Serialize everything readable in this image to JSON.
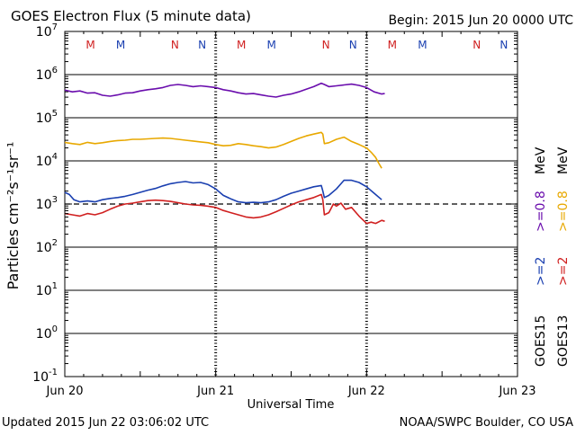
{
  "header": {
    "title": "GOES Electron Flux (5 minute data)",
    "begin": "Begin: 2015 Jun 20 0000 UTC"
  },
  "footer": {
    "updated": "Updated 2015 Jun 22 03:06:02 UTC",
    "credit": "NOAA/SWPC Boulder, CO USA"
  },
  "colors": {
    "goes15_ge08": "#6a0dad",
    "goes13_ge08": "#e8a800",
    "goes15_ge2": "#1a3fb0",
    "goes13_ge2": "#d02020",
    "m_marker": "#d02020",
    "n_marker": "#1a3fb0"
  },
  "chart_data": {
    "type": "line",
    "title": "GOES Electron Flux (5 minute data)",
    "xlabel": "Universal Time",
    "ylabel": "Particles cm⁻²s⁻¹sr⁻¹",
    "y_scale": "log",
    "x_range_days": [
      0,
      3
    ],
    "y_exponent_range": [
      -1,
      7
    ],
    "grid": true,
    "threshold_exponent": 3,
    "x_ticks": [
      {
        "day": 0,
        "label": "Jun 20"
      },
      {
        "day": 1,
        "label": "Jun 21"
      },
      {
        "day": 2,
        "label": "Jun 22"
      },
      {
        "day": 3,
        "label": "Jun 23"
      }
    ],
    "y_ticks": [
      {
        "exp": 7,
        "base": "10",
        "sup": "7"
      },
      {
        "exp": 6,
        "base": "10",
        "sup": "6"
      },
      {
        "exp": 5,
        "base": "10",
        "sup": "5"
      },
      {
        "exp": 4,
        "base": "10",
        "sup": "4"
      },
      {
        "exp": 3,
        "base": "10",
        "sup": "3"
      },
      {
        "exp": 2,
        "base": "10",
        "sup": "2"
      },
      {
        "exp": 1,
        "base": "10",
        "sup": "1"
      },
      {
        "exp": 0,
        "base": "10",
        "sup": "0"
      },
      {
        "exp": -1,
        "base": "10",
        "sup": "-1"
      }
    ],
    "markers": [
      {
        "day": 0.17,
        "label": "M",
        "color": "m_marker"
      },
      {
        "day": 0.37,
        "label": "M",
        "color": "n_marker"
      },
      {
        "day": 0.73,
        "label": "N",
        "color": "m_marker"
      },
      {
        "day": 0.91,
        "label": "N",
        "color": "n_marker"
      },
      {
        "day": 1.17,
        "label": "M",
        "color": "m_marker"
      },
      {
        "day": 1.37,
        "label": "M",
        "color": "n_marker"
      },
      {
        "day": 1.73,
        "label": "N",
        "color": "m_marker"
      },
      {
        "day": 1.91,
        "label": "N",
        "color": "n_marker"
      },
      {
        "day": 2.17,
        "label": "M",
        "color": "m_marker"
      },
      {
        "day": 2.37,
        "label": "M",
        "color": "n_marker"
      },
      {
        "day": 2.73,
        "label": "N",
        "color": "m_marker"
      },
      {
        "day": 2.91,
        "label": "N",
        "color": "n_marker"
      }
    ],
    "series": [
      {
        "name": "GOES15 >=0.8 MeV",
        "color": "goes15_ge08",
        "points": [
          [
            0,
            5.64
          ],
          [
            0.05,
            5.6
          ],
          [
            0.1,
            5.62
          ],
          [
            0.15,
            5.57
          ],
          [
            0.2,
            5.58
          ],
          [
            0.25,
            5.52
          ],
          [
            0.3,
            5.5
          ],
          [
            0.35,
            5.53
          ],
          [
            0.4,
            5.57
          ],
          [
            0.45,
            5.58
          ],
          [
            0.5,
            5.62
          ],
          [
            0.55,
            5.65
          ],
          [
            0.6,
            5.67
          ],
          [
            0.65,
            5.7
          ],
          [
            0.7,
            5.75
          ],
          [
            0.75,
            5.77
          ],
          [
            0.8,
            5.75
          ],
          [
            0.85,
            5.72
          ],
          [
            0.9,
            5.74
          ],
          [
            0.95,
            5.72
          ],
          [
            1.0,
            5.7
          ],
          [
            1.05,
            5.65
          ],
          [
            1.1,
            5.62
          ],
          [
            1.15,
            5.58
          ],
          [
            1.2,
            5.55
          ],
          [
            1.25,
            5.56
          ],
          [
            1.3,
            5.53
          ],
          [
            1.35,
            5.5
          ],
          [
            1.4,
            5.48
          ],
          [
            1.45,
            5.52
          ],
          [
            1.5,
            5.55
          ],
          [
            1.55,
            5.6
          ],
          [
            1.6,
            5.66
          ],
          [
            1.65,
            5.72
          ],
          [
            1.7,
            5.8
          ],
          [
            1.72,
            5.77
          ],
          [
            1.75,
            5.72
          ],
          [
            1.8,
            5.74
          ],
          [
            1.85,
            5.76
          ],
          [
            1.9,
            5.78
          ],
          [
            1.95,
            5.75
          ],
          [
            2.0,
            5.7
          ],
          [
            2.05,
            5.6
          ],
          [
            2.1,
            5.55
          ],
          [
            2.12,
            5.56
          ]
        ]
      },
      {
        "name": "GOES13 >=0.8 MeV",
        "color": "goes13_ge08",
        "points": [
          [
            0,
            4.43
          ],
          [
            0.05,
            4.4
          ],
          [
            0.1,
            4.38
          ],
          [
            0.15,
            4.43
          ],
          [
            0.2,
            4.4
          ],
          [
            0.25,
            4.42
          ],
          [
            0.3,
            4.45
          ],
          [
            0.35,
            4.47
          ],
          [
            0.4,
            4.48
          ],
          [
            0.45,
            4.5
          ],
          [
            0.5,
            4.5
          ],
          [
            0.55,
            4.51
          ],
          [
            0.6,
            4.52
          ],
          [
            0.65,
            4.53
          ],
          [
            0.7,
            4.52
          ],
          [
            0.75,
            4.5
          ],
          [
            0.8,
            4.48
          ],
          [
            0.85,
            4.46
          ],
          [
            0.9,
            4.44
          ],
          [
            0.95,
            4.42
          ],
          [
            1.0,
            4.38
          ],
          [
            1.05,
            4.35
          ],
          [
            1.1,
            4.36
          ],
          [
            1.15,
            4.4
          ],
          [
            1.2,
            4.38
          ],
          [
            1.25,
            4.35
          ],
          [
            1.3,
            4.33
          ],
          [
            1.35,
            4.3
          ],
          [
            1.4,
            4.32
          ],
          [
            1.45,
            4.38
          ],
          [
            1.5,
            4.45
          ],
          [
            1.55,
            4.52
          ],
          [
            1.6,
            4.58
          ],
          [
            1.65,
            4.62
          ],
          [
            1.7,
            4.66
          ],
          [
            1.71,
            4.62
          ],
          [
            1.72,
            4.4
          ],
          [
            1.75,
            4.42
          ],
          [
            1.8,
            4.5
          ],
          [
            1.85,
            4.55
          ],
          [
            1.9,
            4.45
          ],
          [
            1.95,
            4.38
          ],
          [
            2.0,
            4.3
          ],
          [
            2.03,
            4.2
          ],
          [
            2.06,
            4.08
          ],
          [
            2.08,
            3.95
          ],
          [
            2.1,
            3.83
          ]
        ]
      },
      {
        "name": "GOES15 >=2 MeV",
        "color": "goes15_ge2",
        "points": [
          [
            0,
            3.27
          ],
          [
            0.03,
            3.22
          ],
          [
            0.06,
            3.1
          ],
          [
            0.1,
            3.05
          ],
          [
            0.15,
            3.07
          ],
          [
            0.2,
            3.05
          ],
          [
            0.25,
            3.1
          ],
          [
            0.3,
            3.13
          ],
          [
            0.35,
            3.15
          ],
          [
            0.4,
            3.18
          ],
          [
            0.45,
            3.22
          ],
          [
            0.5,
            3.27
          ],
          [
            0.55,
            3.32
          ],
          [
            0.6,
            3.36
          ],
          [
            0.65,
            3.42
          ],
          [
            0.7,
            3.47
          ],
          [
            0.75,
            3.5
          ],
          [
            0.8,
            3.52
          ],
          [
            0.85,
            3.49
          ],
          [
            0.9,
            3.5
          ],
          [
            0.95,
            3.45
          ],
          [
            1.0,
            3.35
          ],
          [
            1.05,
            3.2
          ],
          [
            1.1,
            3.12
          ],
          [
            1.15,
            3.05
          ],
          [
            1.2,
            3.03
          ],
          [
            1.25,
            3.04
          ],
          [
            1.3,
            3.03
          ],
          [
            1.35,
            3.05
          ],
          [
            1.4,
            3.1
          ],
          [
            1.45,
            3.18
          ],
          [
            1.5,
            3.25
          ],
          [
            1.55,
            3.3
          ],
          [
            1.6,
            3.35
          ],
          [
            1.65,
            3.4
          ],
          [
            1.7,
            3.43
          ],
          [
            1.71,
            3.3
          ],
          [
            1.72,
            3.15
          ],
          [
            1.75,
            3.2
          ],
          [
            1.8,
            3.35
          ],
          [
            1.85,
            3.55
          ],
          [
            1.9,
            3.55
          ],
          [
            1.95,
            3.5
          ],
          [
            2.0,
            3.4
          ],
          [
            2.05,
            3.25
          ],
          [
            2.1,
            3.1
          ]
        ]
      },
      {
        "name": "GOES13 >=2 MeV",
        "color": "goes13_ge2",
        "points": [
          [
            0,
            2.78
          ],
          [
            0.05,
            2.75
          ],
          [
            0.1,
            2.72
          ],
          [
            0.15,
            2.78
          ],
          [
            0.2,
            2.75
          ],
          [
            0.25,
            2.8
          ],
          [
            0.3,
            2.88
          ],
          [
            0.35,
            2.95
          ],
          [
            0.4,
            3.0
          ],
          [
            0.45,
            3.02
          ],
          [
            0.5,
            3.05
          ],
          [
            0.55,
            3.08
          ],
          [
            0.6,
            3.09
          ],
          [
            0.65,
            3.08
          ],
          [
            0.7,
            3.06
          ],
          [
            0.75,
            3.03
          ],
          [
            0.8,
            3.0
          ],
          [
            0.85,
            2.98
          ],
          [
            0.9,
            2.97
          ],
          [
            0.95,
            2.95
          ],
          [
            1.0,
            2.92
          ],
          [
            1.05,
            2.85
          ],
          [
            1.1,
            2.8
          ],
          [
            1.15,
            2.75
          ],
          [
            1.2,
            2.7
          ],
          [
            1.25,
            2.68
          ],
          [
            1.3,
            2.7
          ],
          [
            1.35,
            2.75
          ],
          [
            1.4,
            2.82
          ],
          [
            1.45,
            2.9
          ],
          [
            1.5,
            2.98
          ],
          [
            1.55,
            3.05
          ],
          [
            1.6,
            3.1
          ],
          [
            1.65,
            3.15
          ],
          [
            1.7,
            3.22
          ],
          [
            1.71,
            3.1
          ],
          [
            1.72,
            2.75
          ],
          [
            1.75,
            2.8
          ],
          [
            1.78,
            3.0
          ],
          [
            1.8,
            2.95
          ],
          [
            1.83,
            3.02
          ],
          [
            1.86,
            2.88
          ],
          [
            1.9,
            2.92
          ],
          [
            1.95,
            2.72
          ],
          [
            2.0,
            2.55
          ],
          [
            2.03,
            2.58
          ],
          [
            2.06,
            2.55
          ],
          [
            2.1,
            2.62
          ],
          [
            2.12,
            2.6
          ]
        ]
      }
    ],
    "legend": {
      "placement": "right",
      "goes15": "GOES15",
      "goes13": "GOES13",
      "g15_ge2": ">=2",
      "g15_ge08": ">=0.8",
      "g13_ge2": ">=2",
      "g13_ge08": ">=0.8",
      "unit": "MeV"
    }
  }
}
